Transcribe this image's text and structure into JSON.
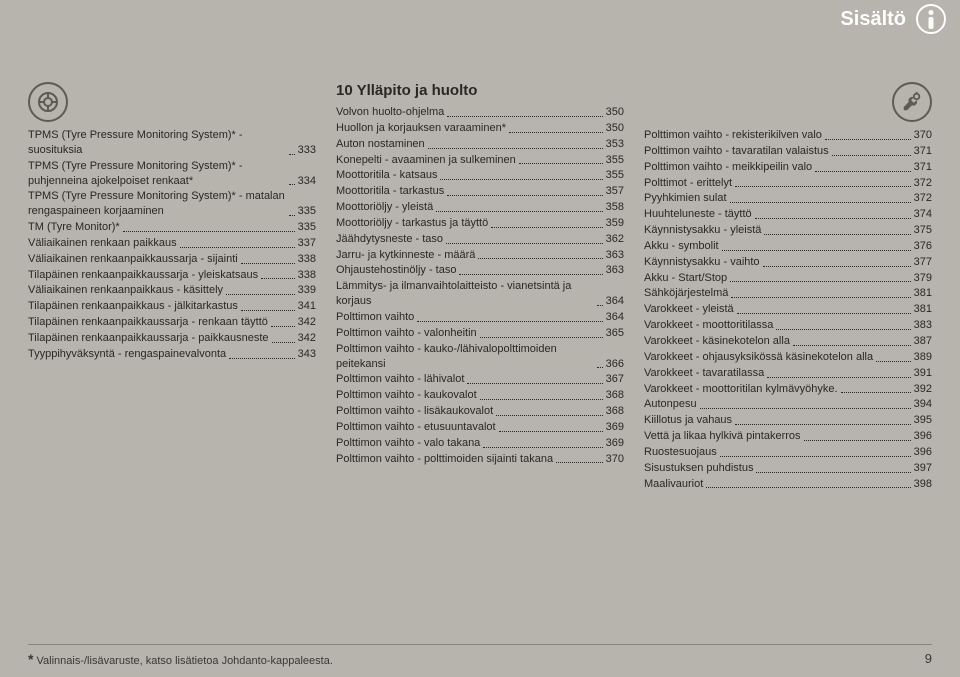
{
  "header": {
    "title": "Sisältö"
  },
  "watermark": "",
  "col1": {
    "items": [
      {
        "label": "TPMS (Tyre Pressure Monitoring System)* - suosituksia",
        "page": "333"
      },
      {
        "label": "TPMS (Tyre Pressure Monitoring System)* - puhjenneina ajokelpoiset renkaat*",
        "page": "334"
      },
      {
        "label": "TPMS (Tyre Pressure Monitoring System)* - matalan rengaspaineen korjaaminen",
        "page": "335"
      },
      {
        "label": "TM (Tyre Monitor)*",
        "page": "335"
      },
      {
        "label": "Väliaikainen renkaan paikkaus",
        "page": "337"
      },
      {
        "label": "Väliaikainen renkaanpaikkaussarja - sijainti",
        "page": "338"
      },
      {
        "label": "Tilapäinen renkaanpaikkaussarja - yleiskatsaus",
        "page": "338"
      },
      {
        "label": "Väliaikainen renkaanpaikkaus - käsittely",
        "page": "339"
      },
      {
        "label": "Tilapäinen renkaanpaikkaus - jälkitarkastus",
        "page": "341"
      },
      {
        "label": "Tilapäinen renkaanpaikkaussarja - renkaan täyttö",
        "page": "342"
      },
      {
        "label": "Tilapäinen renkaanpaikkaussarja - paikkausneste",
        "page": "342"
      },
      {
        "label": "Tyyppihyväksyntä - rengaspainevalvonta",
        "page": "343"
      }
    ]
  },
  "col2": {
    "title": "10 Ylläpito ja huolto",
    "items": [
      {
        "label": "Volvon huolto-ohjelma",
        "page": "350"
      },
      {
        "label": "Huollon ja korjauksen varaaminen*",
        "page": "350"
      },
      {
        "label": "Auton nostaminen",
        "page": "353"
      },
      {
        "label": "Konepelti - avaaminen ja sulkeminen",
        "page": "355"
      },
      {
        "label": "Moottoritila - katsaus",
        "page": "355"
      },
      {
        "label": "Moottoritila - tarkastus",
        "page": "357"
      },
      {
        "label": "Moottoriöljy - yleistä",
        "page": "358"
      },
      {
        "label": "Moottoriöljy - tarkastus ja täyttö",
        "page": "359"
      },
      {
        "label": "Jäähdytysneste - taso",
        "page": "362"
      },
      {
        "label": "Jarru- ja kytkinneste - määrä",
        "page": "363"
      },
      {
        "label": "Ohjaustehostinöljy - taso",
        "page": "363"
      },
      {
        "label": "Lämmitys- ja ilmanvaihtolaitteisto - vianetsintä ja korjaus",
        "page": "364"
      },
      {
        "label": "Polttimon vaihto",
        "page": "364"
      },
      {
        "label": "Polttimon vaihto - valonheitin",
        "page": "365"
      },
      {
        "label": "Polttimon vaihto - kauko-/lähivalopolttimoiden peitekansi",
        "page": "366"
      },
      {
        "label": "Polttimon vaihto - lähivalot",
        "page": "367"
      },
      {
        "label": "Polttimon vaihto - kaukovalot",
        "page": "368"
      },
      {
        "label": "Polttimon vaihto - lisäkaukovalot",
        "page": "368"
      },
      {
        "label": "Polttimon vaihto - etusuuntavalot",
        "page": "369"
      },
      {
        "label": "Polttimon vaihto - valo takana",
        "page": "369"
      },
      {
        "label": "Polttimon vaihto - polttimoiden sijainti takana",
        "page": "370"
      }
    ]
  },
  "col3": {
    "items": [
      {
        "label": "Polttimon vaihto - rekisterikilven valo",
        "page": "370"
      },
      {
        "label": "Polttimon vaihto - tavaratilan valaistus",
        "page": "371"
      },
      {
        "label": "Polttimon vaihto - meikkipeilin valo",
        "page": "371"
      },
      {
        "label": "Polttimot - erittelyt",
        "page": "372"
      },
      {
        "label": "Pyyhkimien sulat",
        "page": "372"
      },
      {
        "label": "Huuhteluneste - täyttö",
        "page": "374"
      },
      {
        "label": "Käynnistysakku - yleistä",
        "page": "375"
      },
      {
        "label": "Akku - symbolit",
        "page": "376"
      },
      {
        "label": "Käynnistysakku - vaihto",
        "page": "377"
      },
      {
        "label": "Akku - Start/Stop",
        "page": "379"
      },
      {
        "label": "Sähköjärjestelmä",
        "page": "381"
      },
      {
        "label": "Varokkeet - yleistä",
        "page": "381"
      },
      {
        "label": "Varokkeet - moottoritilassa",
        "page": "383"
      },
      {
        "label": "Varokkeet - käsinekotelon alla",
        "page": "387"
      },
      {
        "label": "Varokkeet - ohjausyksikössä käsinekotelon alla",
        "page": "389"
      },
      {
        "label": "Varokkeet - tavaratilassa",
        "page": "391"
      },
      {
        "label": "Varokkeet - moottoritilan kylmävyöhyke.",
        "page": "392"
      },
      {
        "label": "Autonpesu",
        "page": "394"
      },
      {
        "label": "Kiillotus ja vahaus",
        "page": "395"
      },
      {
        "label": "Vettä ja likaa hylkivä pintakerros",
        "page": "396"
      },
      {
        "label": "Ruostesuojaus",
        "page": "396"
      },
      {
        "label": "Sisustuksen puhdistus",
        "page": "397"
      },
      {
        "label": "Maalivauriot",
        "page": "398"
      }
    ]
  },
  "footer": {
    "note": "Valinnais-/lisävaruste, katso lisätietoa Johdanto-kappaleesta.",
    "page": "9"
  }
}
